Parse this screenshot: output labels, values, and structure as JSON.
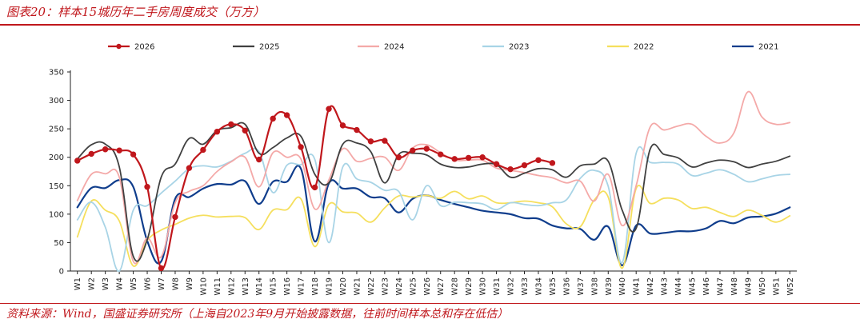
{
  "header": {
    "title": "图表20：样本15城历年二手房周度成交（万方）"
  },
  "footer": {
    "source": "资料来源：Wind，国盛证券研究所（上海自2023年9月开始披露数据，往前时间样本总和存在低估）"
  },
  "chart_data": {
    "type": "line",
    "title": "图表20：样本15城历年二手房周度成交（万方）",
    "xlabel": "",
    "ylabel": "",
    "ylim": [
      0,
      350
    ],
    "yticks": [
      0,
      50,
      100,
      150,
      200,
      250,
      300,
      350
    ],
    "grid": false,
    "legend": "top",
    "categories": [
      "W1",
      "W2",
      "W3",
      "W4",
      "W5",
      "W6",
      "W7",
      "W8",
      "W9",
      "W10",
      "W11",
      "W12",
      "W13",
      "W14",
      "W15",
      "W16",
      "W17",
      "W18",
      "W19",
      "W20",
      "W21",
      "W22",
      "W23",
      "W24",
      "W25",
      "W26",
      "W27",
      "W28",
      "W29",
      "W30",
      "W31",
      "W32",
      "W33",
      "W34",
      "W35",
      "W36",
      "W37",
      "W38",
      "W39",
      "W40",
      "W41",
      "W42",
      "W43",
      "W44",
      "W45",
      "W46",
      "W47",
      "W48",
      "W49",
      "W50",
      "W51",
      "W52"
    ],
    "series": [
      {
        "name": "2026",
        "color": "#c0171c",
        "markers": true,
        "width": 2.2,
        "values": [
          194,
          206,
          214,
          212,
          205,
          148,
          5,
          95,
          181,
          213,
          245,
          258,
          247,
          196,
          268,
          274,
          218,
          147,
          285,
          256,
          248,
          228,
          229,
          200,
          212,
          215,
          205,
          197,
          199,
          200,
          188,
          179,
          186,
          195,
          190,
          null,
          null,
          null,
          null,
          null,
          null,
          null,
          null,
          null,
          null,
          null,
          null,
          null,
          null,
          null,
          null,
          null
        ]
      },
      {
        "name": "2025",
        "color": "#404040",
        "markers": false,
        "width": 1.8,
        "values": [
          197,
          222,
          223,
          183,
          26,
          55,
          165,
          188,
          233,
          223,
          247,
          252,
          258,
          207,
          217,
          234,
          237,
          170,
          155,
          223,
          225,
          210,
          155,
          205,
          207,
          204,
          188,
          182,
          183,
          188,
          187,
          165,
          172,
          180,
          178,
          165,
          185,
          188,
          193,
          107,
          75,
          214,
          205,
          199,
          183,
          190,
          195,
          192,
          182,
          188,
          193,
          202
        ]
      },
      {
        "name": "2024",
        "color": "#f4a9a8",
        "markers": false,
        "width": 1.8,
        "values": [
          124,
          170,
          171,
          165,
          17,
          58,
          25,
          120,
          140,
          150,
          175,
          192,
          200,
          148,
          208,
          200,
          197,
          109,
          160,
          215,
          193,
          198,
          200,
          177,
          216,
          222,
          208,
          195,
          195,
          195,
          181,
          177,
          173,
          168,
          164,
          155,
          158,
          123,
          170,
          80,
          150,
          253,
          248,
          255,
          258,
          237,
          225,
          243,
          315,
          271,
          258,
          261
        ]
      },
      {
        "name": "2023",
        "color": "#a8d4e6",
        "markers": false,
        "width": 1.8,
        "values": [
          90,
          121,
          77,
          0,
          107,
          115,
          137,
          158,
          180,
          185,
          183,
          193,
          207,
          210,
          138,
          186,
          187,
          196,
          50,
          183,
          162,
          156,
          142,
          140,
          90,
          150,
          115,
          121,
          120,
          118,
          108,
          120,
          117,
          115,
          120,
          125,
          163,
          177,
          149,
          15,
          207,
          191,
          191,
          188,
          168,
          172,
          178,
          170,
          157,
          162,
          168,
          170
        ]
      },
      {
        "name": "2022",
        "color": "#f5df5d",
        "markers": false,
        "width": 1.8,
        "values": [
          60,
          123,
          107,
          88,
          9,
          54,
          72,
          82,
          93,
          98,
          95,
          96,
          94,
          73,
          107,
          108,
          127,
          43,
          117,
          104,
          102,
          86,
          111,
          132,
          130,
          133,
          128,
          140,
          127,
          132,
          120,
          120,
          123,
          120,
          113,
          83,
          78,
          125,
          130,
          5,
          145,
          119,
          128,
          125,
          110,
          112,
          103,
          96,
          107,
          98,
          86,
          97
        ]
      },
      {
        "name": "2021",
        "color": "#0f3d8c",
        "markers": false,
        "width": 2.2,
        "values": [
          112,
          146,
          146,
          160,
          148,
          53,
          17,
          127,
          130,
          145,
          153,
          152,
          158,
          118,
          157,
          157,
          180,
          52,
          154,
          145,
          145,
          130,
          128,
          103,
          127,
          133,
          125,
          118,
          112,
          106,
          103,
          100,
          93,
          92,
          80,
          75,
          74,
          55,
          78,
          10,
          80,
          66,
          67,
          70,
          70,
          75,
          88,
          84,
          94,
          96,
          101,
          112
        ]
      }
    ]
  }
}
